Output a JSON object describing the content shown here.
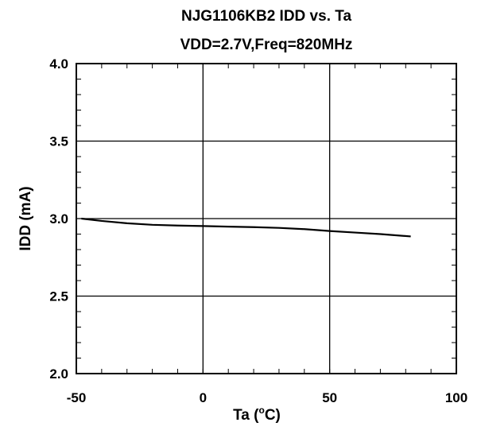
{
  "chart_data": {
    "type": "line",
    "title": "NJG1106KB2 IDD vs. Ta",
    "subtitle": "VDD=2.7V,Freq=820MHz",
    "xlabel_main": "Ta (",
    "xlabel_sup": "o",
    "xlabel_end": "C)",
    "ylabel": "IDD (mA)",
    "xlim": [
      -50,
      100
    ],
    "ylim": [
      2.0,
      4.0
    ],
    "x_ticks": [
      -50,
      0,
      50,
      100
    ],
    "y_ticks": [
      2.0,
      2.5,
      3.0,
      3.5,
      4.0
    ],
    "x_tick_labels": [
      "-50",
      "0",
      "50",
      "100"
    ],
    "y_tick_labels": [
      "2.0",
      "2.5",
      "3.0",
      "3.5",
      "4.0"
    ],
    "grid": true,
    "series": [
      {
        "color": "#000000",
        "x": [
          -48,
          -40,
          -30,
          -20,
          -10,
          0,
          10,
          20,
          30,
          40,
          50,
          60,
          70,
          82
        ],
        "y": [
          3.0,
          2.985,
          2.97,
          2.96,
          2.955,
          2.952,
          2.948,
          2.945,
          2.94,
          2.932,
          2.92,
          2.91,
          2.9,
          2.885
        ]
      }
    ]
  }
}
